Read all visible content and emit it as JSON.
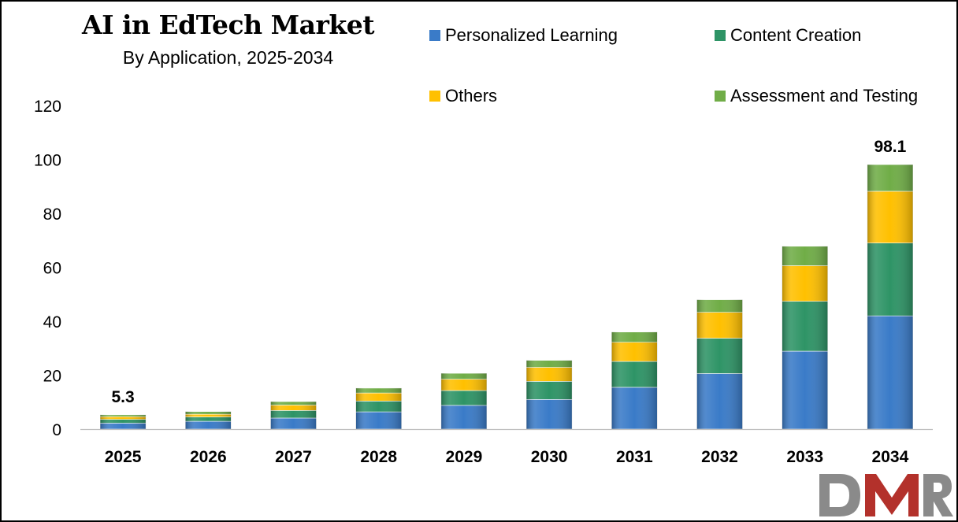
{
  "chart_data": {
    "type": "bar",
    "stacked": true,
    "title": "AI in EdTech Market",
    "subtitle": "By Application, 2025-2034",
    "xlabel": "",
    "ylabel": "",
    "ylim": [
      0,
      120
    ],
    "yticks": [
      0,
      20,
      40,
      60,
      80,
      100,
      120
    ],
    "grid": false,
    "legend_position": "top-right",
    "categories": [
      "2025",
      "2026",
      "2027",
      "2028",
      "2029",
      "2030",
      "2031",
      "2032",
      "2033",
      "2034"
    ],
    "series": [
      {
        "name": "Personalized Learning",
        "color": "#3a7bc8",
        "values": [
          2.2,
          2.9,
          4.1,
          6.4,
          8.8,
          11.0,
          15.5,
          20.6,
          28.9,
          42.0
        ]
      },
      {
        "name": "Content Creation",
        "color": "#2e9466",
        "values": [
          1.4,
          1.6,
          2.8,
          4.0,
          5.5,
          6.7,
          9.6,
          13.1,
          18.5,
          27.0
        ]
      },
      {
        "name": "Others",
        "color": "#ffc000",
        "values": [
          1.0,
          1.0,
          2.0,
          3.0,
          4.2,
          5.2,
          7.1,
          9.6,
          13.2,
          19.2
        ]
      },
      {
        "name": "Assessment and Testing",
        "color": "#70ad47",
        "values": [
          0.7,
          1.0,
          1.3,
          1.8,
          2.2,
          2.6,
          3.8,
          4.7,
          7.2,
          9.9
        ]
      }
    ],
    "annotations": [
      {
        "category": "2025",
        "text": "5.3"
      },
      {
        "category": "2034",
        "text": "98.1"
      }
    ]
  },
  "logo": {
    "text": "DMR",
    "colors": [
      "#8a8a8a",
      "#b3312b"
    ]
  }
}
